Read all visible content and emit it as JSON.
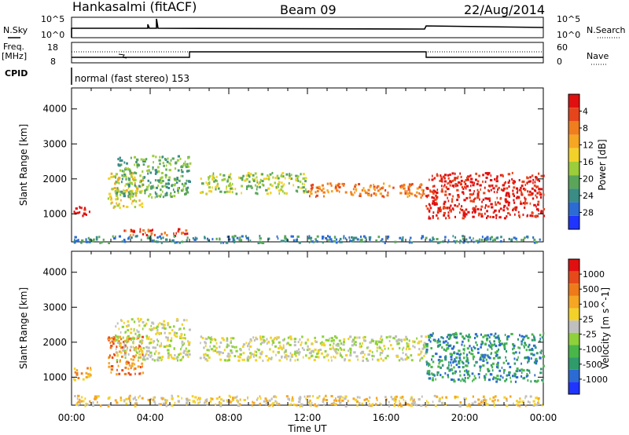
{
  "header": {
    "radar": "Hankasalmi (fitACF)",
    "beam": "Beam 09",
    "date": "22/Aug/2014"
  },
  "top_panels": {
    "nsky_label": "N.Sky",
    "nsky_ticks": [
      "10^5",
      "10^0"
    ],
    "nsearch_label": "N.Search",
    "nsearch_ticks": [
      "10^5",
      "10^0"
    ],
    "freq_label_1": "Freq.",
    "freq_label_2": "[MHz]",
    "freq_ticks": [
      "18",
      "8"
    ],
    "nave_label": "Nave",
    "nave_ticks": [
      "60",
      "0"
    ],
    "cpid_label": "CPID",
    "cpid_text": "normal (fast stereo) 153"
  },
  "chart_data": [
    {
      "type": "heatmap",
      "title": "",
      "xlabel": "Time UT",
      "ylabel": "Slant Range [km]",
      "x_ticks": [
        "00:00",
        "04:00",
        "08:00",
        "12:00",
        "16:00",
        "20:00",
        "00:00"
      ],
      "y_ticks": [
        "1000",
        "2000",
        "3000",
        "4000"
      ],
      "ylim": [
        200,
        4600
      ],
      "xlim_hours": [
        0,
        24
      ],
      "colorbar": {
        "label": "Power [dB]",
        "ticks": [
          "4",
          "8",
          "12",
          "16",
          "20",
          "24",
          "28"
        ],
        "colors": [
          "#1f35ff",
          "#2c6bd3",
          "#3a8c85",
          "#5aa55a",
          "#9ccd3a",
          "#f2d22a",
          "#f5a623",
          "#f07e1e",
          "#e6451c",
          "#e01010"
        ]
      },
      "echo_bands": [
        {
          "t0": 0.0,
          "t1": 0.9,
          "r0": 950,
          "r1": 1250,
          "level": 9
        },
        {
          "t0": 1.8,
          "t1": 3.6,
          "r0": 1200,
          "r1": 2200,
          "level": 5
        },
        {
          "t0": 2.2,
          "t1": 6.0,
          "r0": 1500,
          "r1": 2700,
          "level": 3
        },
        {
          "t0": 2.5,
          "t1": 6.0,
          "r0": 400,
          "r1": 600,
          "level": 8
        },
        {
          "t0": 6.5,
          "t1": 12.0,
          "r0": 1600,
          "r1": 2200,
          "level": 4
        },
        {
          "t0": 12.0,
          "t1": 18.0,
          "r0": 1500,
          "r1": 1900,
          "level": 7
        },
        {
          "t0": 18.0,
          "t1": 24.0,
          "r0": 900,
          "r1": 2200,
          "level": 9
        },
        {
          "t0": 0.0,
          "t1": 24.0,
          "r0": 200,
          "r1": 400,
          "level": 2
        }
      ]
    },
    {
      "type": "heatmap",
      "title": "",
      "xlabel": "Time UT",
      "ylabel": "Slant Range [km]",
      "x_ticks": [
        "00:00",
        "04:00",
        "08:00",
        "12:00",
        "16:00",
        "20:00",
        "00:00"
      ],
      "y_ticks": [
        "1000",
        "2000",
        "3000",
        "4000"
      ],
      "ylim": [
        200,
        4600
      ],
      "xlim_hours": [
        0,
        24
      ],
      "colorbar": {
        "label": "Velocity [m s^-1]",
        "ticks": [
          "1000",
          "500",
          "100",
          "25",
          "-25",
          "-100",
          "-500",
          "-1000"
        ],
        "colors": [
          "#1f35ff",
          "#2c6bd3",
          "#2f9b6b",
          "#49b64a",
          "#8fd13a",
          "#bfbfbf",
          "#f2d22a",
          "#f5a623",
          "#ee7a1a",
          "#e64a1a",
          "#e01010"
        ]
      },
      "echo_bands": [
        {
          "t0": 0.0,
          "t1": 1.0,
          "r0": 950,
          "r1": 1300,
          "level": 7
        },
        {
          "t0": 1.8,
          "t1": 3.6,
          "r0": 1100,
          "r1": 2200,
          "level": 8
        },
        {
          "t0": 2.2,
          "t1": 6.0,
          "r0": 1500,
          "r1": 2700,
          "level": 5
        },
        {
          "t0": 6.5,
          "t1": 18.0,
          "r0": 1500,
          "r1": 2200,
          "level": 5
        },
        {
          "t0": 18.0,
          "t1": 24.0,
          "r0": 900,
          "r1": 2300,
          "level": 2
        },
        {
          "t0": 0.0,
          "t1": 24.0,
          "r0": 200,
          "r1": 500,
          "level": 6
        }
      ]
    }
  ]
}
